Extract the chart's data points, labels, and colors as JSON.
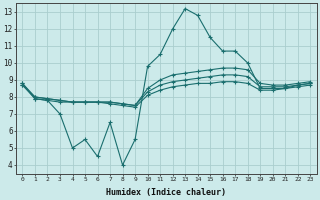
{
  "x": [
    0,
    1,
    2,
    3,
    4,
    5,
    6,
    7,
    8,
    9,
    10,
    11,
    12,
    13,
    14,
    15,
    16,
    17,
    18,
    19,
    20,
    21,
    22,
    23
  ],
  "line1": [
    8.8,
    7.9,
    7.8,
    7.0,
    5.0,
    5.5,
    4.5,
    6.5,
    4.0,
    5.5,
    9.8,
    10.5,
    12.0,
    13.2,
    12.8,
    11.5,
    10.7,
    10.7,
    10.0,
    8.5,
    8.5,
    8.5,
    8.7,
    8.8
  ],
  "line2": [
    8.8,
    8.0,
    7.9,
    7.8,
    7.7,
    7.7,
    7.7,
    7.7,
    7.6,
    7.5,
    8.5,
    9.0,
    9.3,
    9.4,
    9.5,
    9.6,
    9.7,
    9.7,
    9.6,
    8.8,
    8.7,
    8.7,
    8.8,
    8.9
  ],
  "line3": [
    8.7,
    8.0,
    7.9,
    7.8,
    7.7,
    7.7,
    7.7,
    7.7,
    7.6,
    7.5,
    8.3,
    8.7,
    8.9,
    9.0,
    9.1,
    9.2,
    9.3,
    9.3,
    9.2,
    8.6,
    8.6,
    8.6,
    8.7,
    8.8
  ],
  "line4": [
    8.7,
    7.9,
    7.8,
    7.7,
    7.7,
    7.7,
    7.7,
    7.6,
    7.5,
    7.4,
    8.1,
    8.4,
    8.6,
    8.7,
    8.8,
    8.8,
    8.9,
    8.9,
    8.8,
    8.4,
    8.4,
    8.5,
    8.6,
    8.7
  ],
  "bg_color": "#cceaea",
  "line_color": "#1a6e6e",
  "grid_color": "#aacece",
  "xlabel": "Humidex (Indice chaleur)",
  "ylim": [
    3.5,
    13.5
  ],
  "xlim": [
    -0.5,
    23.5
  ],
  "yticks": [
    4,
    5,
    6,
    7,
    8,
    9,
    10,
    11,
    12,
    13
  ],
  "xticks": [
    0,
    1,
    2,
    3,
    4,
    5,
    6,
    7,
    8,
    9,
    10,
    11,
    12,
    13,
    14,
    15,
    16,
    17,
    18,
    19,
    20,
    21,
    22,
    23
  ]
}
